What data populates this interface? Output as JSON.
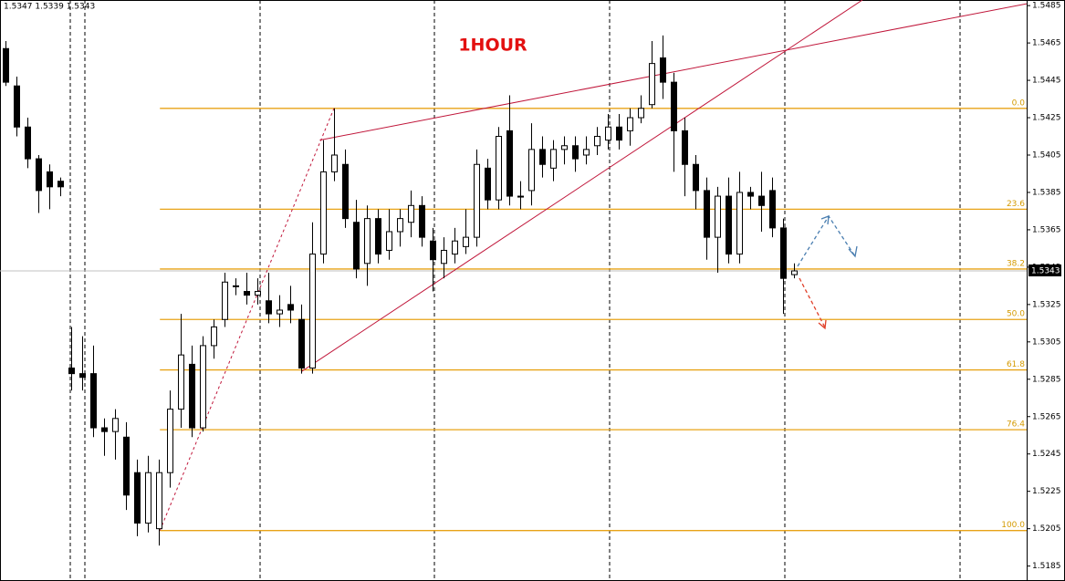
{
  "chart_data": {
    "type": "candlestick",
    "title": "1HOUR",
    "header": "1.5347 1.5339 1.5343",
    "current_price": 1.5343,
    "xlim": [
      -0.5,
      93.25
    ],
    "ylim": [
      1.5177,
      1.5488
    ],
    "yticks": [
      1.5185,
      1.5205,
      1.5225,
      1.5245,
      1.5265,
      1.5285,
      1.5305,
      1.5325,
      1.5345,
      1.5365,
      1.5385,
      1.5405,
      1.5425,
      1.5445,
      1.5465,
      1.5485
    ],
    "bull_color": "#ffffff",
    "bear_color": "#000000",
    "open": [
      1.5462,
      1.5442,
      1.542,
      1.5403,
      1.5396,
      1.5391,
      1.5291,
      1.5288,
      1.5288,
      1.5259,
      1.5257,
      1.5254,
      1.5235,
      1.5208,
      1.5205,
      1.5235,
      1.5269,
      1.5293,
      1.5259,
      1.5303,
      1.5317,
      1.5335,
      1.5332,
      1.533,
      1.5327,
      1.532,
      1.5325,
      1.5317,
      1.5291,
      1.5352,
      1.5396,
      1.54,
      1.5369,
      1.5347,
      1.5371,
      1.5354,
      1.5364,
      1.5369,
      1.5378,
      1.5359,
      1.5347,
      1.5352,
      1.5356,
      1.5361,
      1.5398,
      1.5381,
      1.5418,
      1.5383,
      1.5386,
      1.5408,
      1.5398,
      1.5408,
      1.541,
      1.5405,
      1.541,
      1.5413,
      1.542,
      1.5418,
      1.5425,
      1.5432,
      1.5457,
      1.5444,
      1.5418,
      1.54,
      1.5386,
      1.5361,
      1.5383,
      1.5352,
      1.5385,
      1.5383,
      1.5386,
      1.5366,
      1.5341
    ],
    "high": [
      1.5466,
      1.5447,
      1.5425,
      1.5405,
      1.54,
      1.5393,
      1.5313,
      1.5308,
      1.5303,
      1.5264,
      1.5269,
      1.5262,
      1.5242,
      1.5244,
      1.5242,
      1.5279,
      1.532,
      1.5303,
      1.5308,
      1.5317,
      1.5342,
      1.5339,
      1.5342,
      1.5339,
      1.5342,
      1.533,
      1.5335,
      1.5325,
      1.5369,
      1.5413,
      1.543,
      1.5408,
      1.5381,
      1.5378,
      1.5376,
      1.5376,
      1.5376,
      1.5386,
      1.5383,
      1.5366,
      1.5361,
      1.5366,
      1.5376,
      1.5408,
      1.5403,
      1.542,
      1.5437,
      1.5391,
      1.5422,
      1.5415,
      1.5413,
      1.5415,
      1.5415,
      1.5415,
      1.542,
      1.5427,
      1.5427,
      1.543,
      1.5437,
      1.5466,
      1.5469,
      1.5449,
      1.5425,
      1.5405,
      1.5393,
      1.5388,
      1.5393,
      1.5396,
      1.5388,
      1.5396,
      1.5393,
      1.5371,
      1.5347
    ],
    "low": [
      1.5442,
      1.5415,
      1.5398,
      1.5374,
      1.5376,
      1.5383,
      1.5279,
      1.5279,
      1.5254,
      1.5244,
      1.5242,
      1.5215,
      1.5201,
      1.5203,
      1.5196,
      1.5227,
      1.5259,
      1.5254,
      1.5257,
      1.5296,
      1.5313,
      1.533,
      1.5325,
      1.5325,
      1.5315,
      1.5313,
      1.5315,
      1.5288,
      1.5288,
      1.5347,
      1.5391,
      1.5366,
      1.5339,
      1.5335,
      1.5347,
      1.5349,
      1.5356,
      1.5361,
      1.5356,
      1.5332,
      1.5339,
      1.5347,
      1.5352,
      1.5356,
      1.5376,
      1.5376,
      1.5378,
      1.5376,
      1.5378,
      1.5393,
      1.5391,
      1.54,
      1.5396,
      1.54,
      1.5405,
      1.5408,
      1.5408,
      1.541,
      1.5422,
      1.543,
      1.5435,
      1.5396,
      1.5383,
      1.5376,
      1.5349,
      1.5342,
      1.5347,
      1.5347,
      1.5376,
      1.5364,
      1.5361,
      1.532,
      1.5339
    ],
    "close": [
      1.5444,
      1.542,
      1.5403,
      1.5386,
      1.5388,
      1.5388,
      1.5288,
      1.5286,
      1.5259,
      1.5257,
      1.5264,
      1.5223,
      1.5208,
      1.5235,
      1.5235,
      1.5269,
      1.5298,
      1.5259,
      1.5303,
      1.5313,
      1.5337,
      1.5335,
      1.533,
      1.5332,
      1.532,
      1.5322,
      1.5322,
      1.5291,
      1.5352,
      1.5396,
      1.5405,
      1.5371,
      1.5344,
      1.5371,
      1.5352,
      1.5364,
      1.5371,
      1.5378,
      1.5361,
      1.5349,
      1.5354,
      1.5359,
      1.5361,
      1.54,
      1.5381,
      1.5415,
      1.5383,
      1.5383,
      1.5408,
      1.54,
      1.5408,
      1.541,
      1.5403,
      1.5408,
      1.5415,
      1.542,
      1.5413,
      1.5425,
      1.543,
      1.5454,
      1.5444,
      1.5418,
      1.54,
      1.5386,
      1.5361,
      1.5383,
      1.5352,
      1.5385,
      1.5383,
      1.5378,
      1.5366,
      1.5339,
      1.5343
    ],
    "fib": {
      "start_x": 14.1,
      "color": "#e8a317",
      "prices": [
        1.543,
        1.5376,
        1.5344,
        1.5317,
        1.529,
        1.5258,
        1.5204
      ],
      "labels": [
        "0.0",
        "23.6",
        "38.2",
        "50.0",
        "61.8",
        "76.4",
        "100.0"
      ]
    },
    "trendlines": {
      "color": "#c0163a",
      "lines": [
        {
          "x": [
            28.7,
            93.25
          ],
          "y": [
            1.5413,
            1.5486
          ],
          "dashed": false
        },
        {
          "x": [
            27,
            78.25
          ],
          "y": [
            1.5289,
            1.5488
          ],
          "dashed": false
        },
        {
          "x": [
            14.1,
            30
          ],
          "y": [
            1.5204,
            1.543
          ],
          "dashed": true
        }
      ]
    }
  }
}
